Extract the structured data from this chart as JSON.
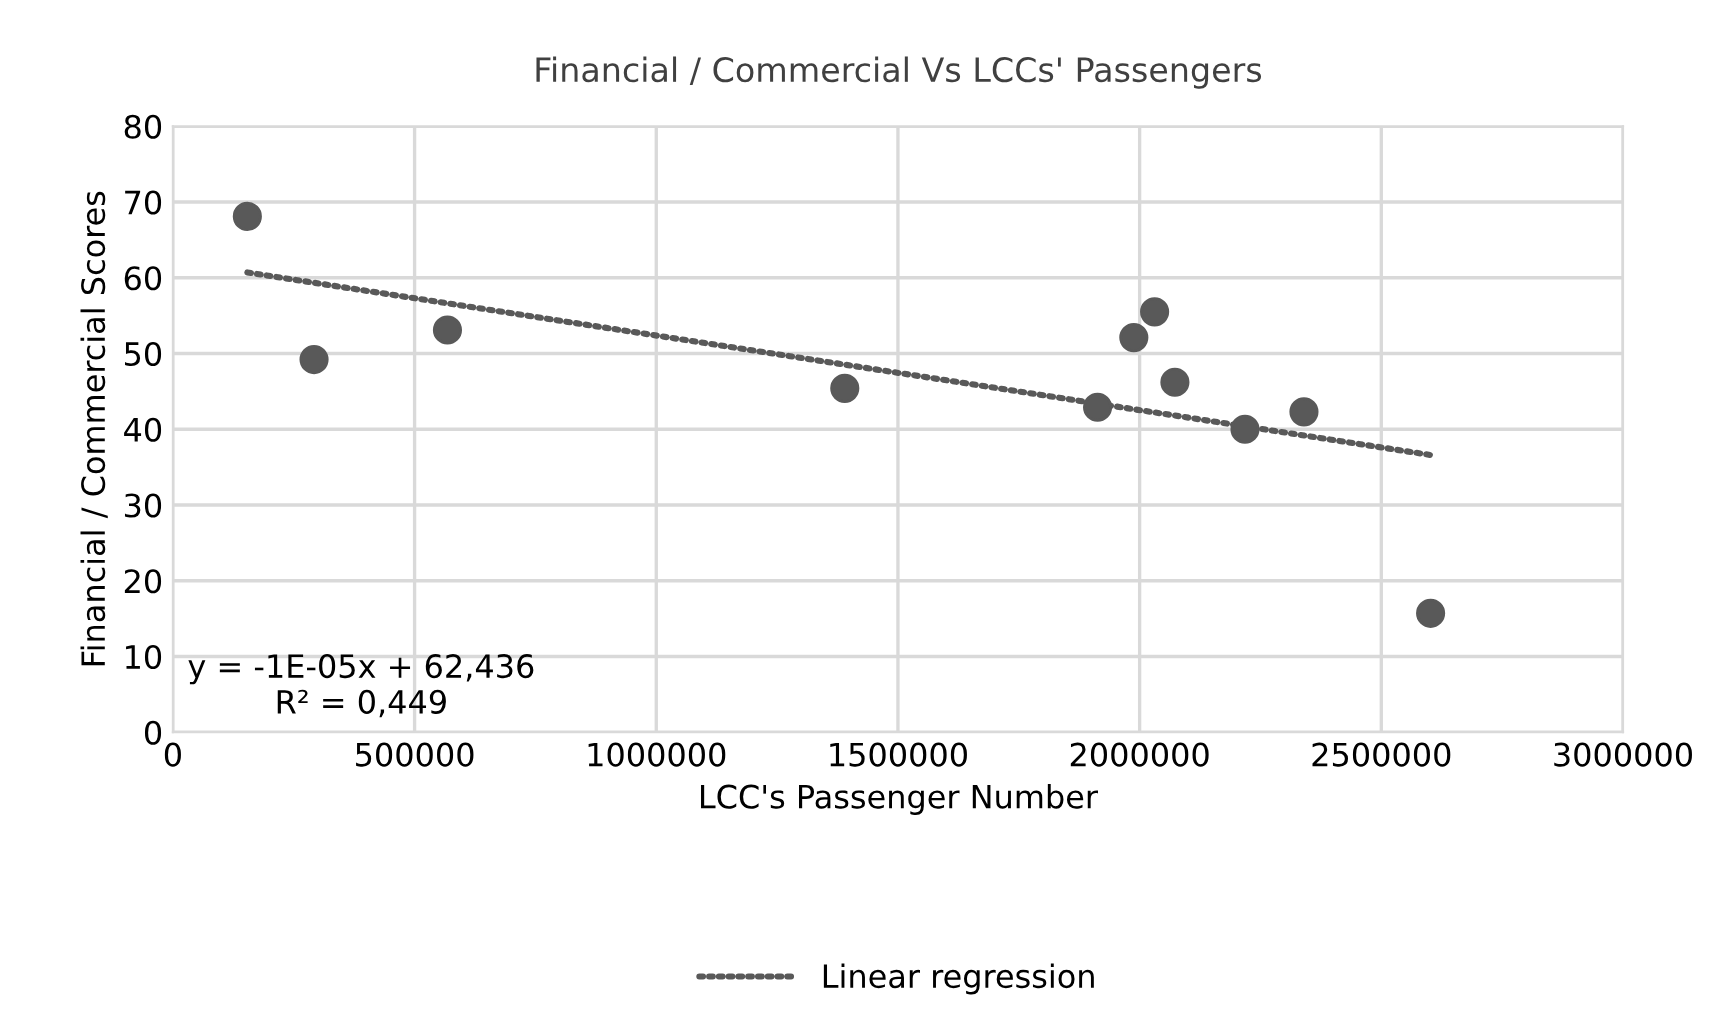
{
  "chart_data": {
    "type": "scatter",
    "title": "Financial / Commercial Vs LCCs' Passengers",
    "xlabel": "LCC's Passenger Number",
    "ylabel": "Financial / Commercial Scores",
    "series": [
      {
        "color": "#595959",
        "marker": "circle",
        "x": [
          154000,
          292000,
          568000,
          1390000,
          1913000,
          1988000,
          2031000,
          2073000,
          2218000,
          2340000,
          2602000
        ],
        "values": [
          68.1,
          49.2,
          53.1,
          45.4,
          42.9,
          52.1,
          55.5,
          46.2,
          40.0,
          42.3,
          15.7
        ]
      },
      {
        "type": "line",
        "name": "Linear regression",
        "color": "#595959",
        "line_style": "dotted",
        "marker": "none",
        "x": [
          154000,
          2602000
        ],
        "values": [
          60.7,
          36.6
        ]
      }
    ],
    "annotations": [
      "y = -1E-05x + 62,436\nR² = 0,449"
    ],
    "xlim": [
      0,
      3000000
    ],
    "xticks": [
      0,
      500000,
      1000000,
      1500000,
      2000000,
      2500000,
      3000000
    ],
    "ylim": [
      0,
      80
    ],
    "yticks": [
      0,
      10,
      20,
      30,
      40,
      50,
      60,
      70,
      80
    ],
    "grid": true,
    "legend": "bottom"
  }
}
